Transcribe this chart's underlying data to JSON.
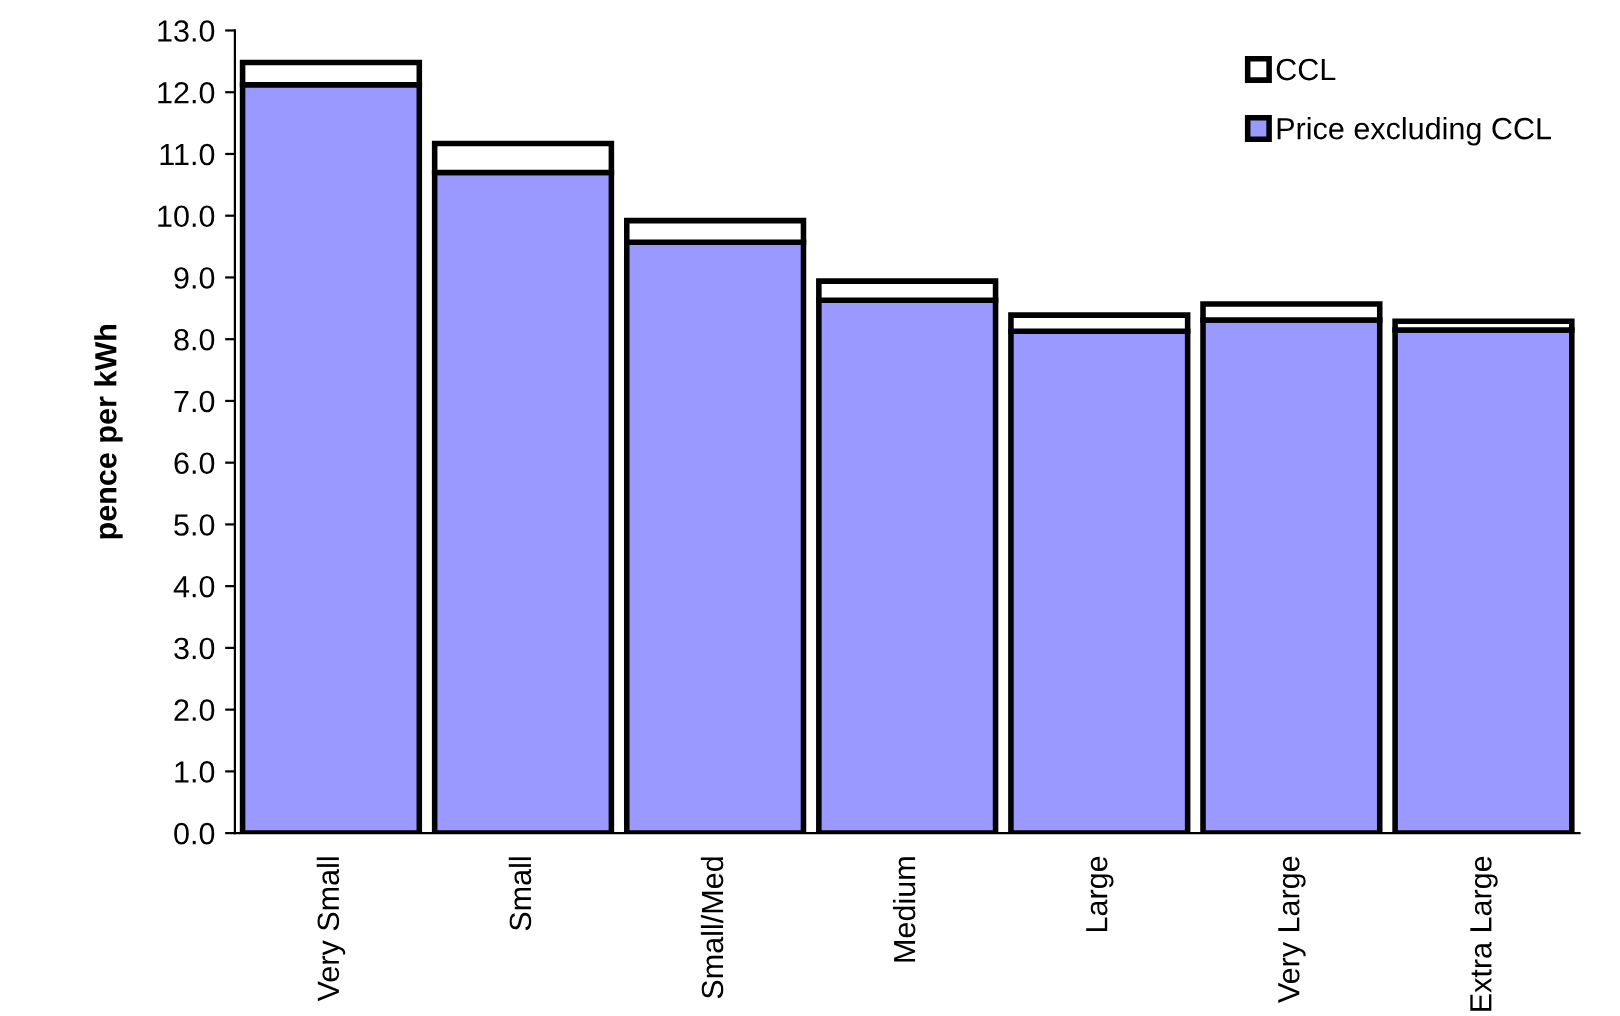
{
  "chart_data": {
    "type": "bar",
    "stacked": true,
    "ylabel": "pence per kWh",
    "categories": [
      "Very Small",
      "Small",
      "Small/Med",
      "Medium",
      "Large",
      "Very Large",
      "Extra Large"
    ],
    "series": [
      {
        "name": "Price excluding CCL",
        "color": "#9999ff",
        "values": [
          12.12,
          10.7,
          9.57,
          8.63,
          8.13,
          8.31,
          8.15
        ]
      },
      {
        "name": "CCL",
        "color": "#ffffff",
        "values": [
          0.36,
          0.47,
          0.35,
          0.31,
          0.26,
          0.26,
          0.14
        ]
      }
    ],
    "ylim": [
      0,
      13
    ],
    "yticks": [
      {
        "value": 0,
        "label": "0.0"
      },
      {
        "value": 1,
        "label": "1.0"
      },
      {
        "value": 2,
        "label": "2.0"
      },
      {
        "value": 3,
        "label": "3.0"
      },
      {
        "value": 4,
        "label": "4.0"
      },
      {
        "value": 5,
        "label": "5.0"
      },
      {
        "value": 6,
        "label": "6.0"
      },
      {
        "value": 7,
        "label": "7.0"
      },
      {
        "value": 8,
        "label": "8.0"
      },
      {
        "value": 9,
        "label": "9.0"
      },
      {
        "value": 10,
        "label": "10.0"
      },
      {
        "value": 11,
        "label": "11.0"
      },
      {
        "value": 12,
        "label": "12.0"
      },
      {
        "value": 13,
        "label": "13.0"
      }
    ],
    "grid": false,
    "legend": "top right"
  }
}
